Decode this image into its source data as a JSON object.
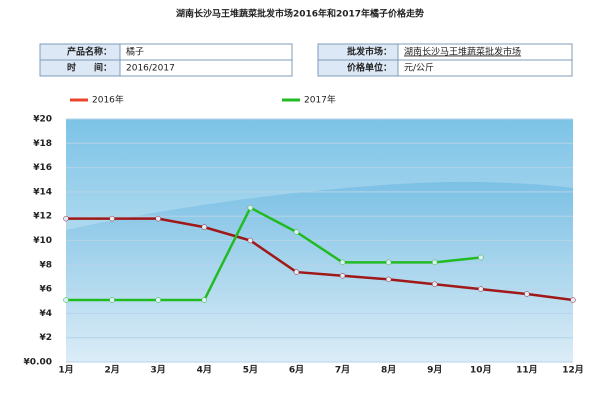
{
  "info_table": {
    "rows": [
      [
        "产品名称：",
        "橘子",
        "批发市场：",
        "湖南长沙马王堆蔬菜批发市场"
      ],
      [
        "时　　间：",
        "2016/2017",
        "价格单位：",
        "元/公斤"
      ]
    ]
  },
  "chart_data": {
    "type": "line",
    "title": "湖南长沙马王堆蔬菜批发市场2016年和2017年橘子价格走势",
    "categories": [
      "1月",
      "2月",
      "3月",
      "4月",
      "5月",
      "6月",
      "7月",
      "8月",
      "9月",
      "10月",
      "11月",
      "12月"
    ],
    "series": [
      {
        "name": "2016年",
        "color": "#a01818",
        "legend_color": "#e8452c",
        "values": [
          11.8,
          11.8,
          11.8,
          11.1,
          10.0,
          7.4,
          7.1,
          6.8,
          6.4,
          6.0,
          5.6,
          5.1
        ]
      },
      {
        "name": "2017年",
        "color": "#22bb22",
        "legend_color": "#22bb22",
        "values": [
          5.1,
          5.1,
          5.1,
          5.1,
          12.7,
          10.7,
          8.2,
          8.2,
          8.2,
          8.6,
          null,
          null
        ]
      }
    ],
    "ylim": [
      0,
      20
    ],
    "yticks": [
      {
        "value": 0,
        "label": "¥0.00"
      },
      {
        "value": 2,
        "label": "¥2"
      },
      {
        "value": 4,
        "label": "¥4"
      },
      {
        "value": 6,
        "label": "¥6"
      },
      {
        "value": 8,
        "label": "¥8"
      },
      {
        "value": 10,
        "label": "¥10"
      },
      {
        "value": 12,
        "label": "¥12"
      },
      {
        "value": 14,
        "label": "¥14"
      },
      {
        "value": 16,
        "label": "¥16"
      },
      {
        "value": 18,
        "label": "¥18"
      },
      {
        "value": 20,
        "label": "¥20"
      }
    ],
    "grid": true
  }
}
